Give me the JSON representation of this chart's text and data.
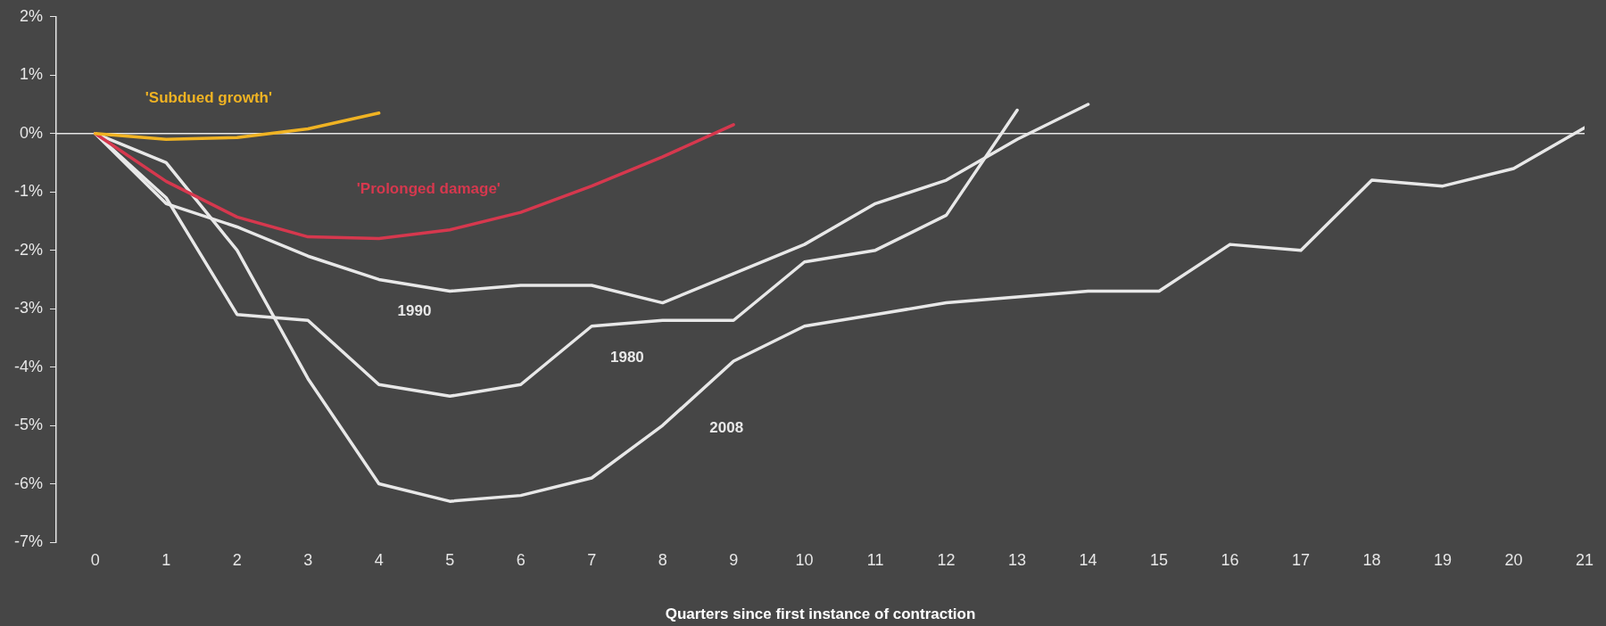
{
  "chart_data": {
    "type": "line",
    "xlabel": "Quarters since first instance of contraction",
    "x": [
      0,
      1,
      2,
      3,
      4,
      5,
      6,
      7,
      8,
      9,
      10,
      11,
      12,
      13,
      14,
      15,
      16,
      17,
      18,
      19,
      20,
      21
    ],
    "xlim": [
      -0.55,
      21
    ],
    "xticks": [
      0,
      1,
      2,
      3,
      4,
      5,
      6,
      7,
      8,
      9,
      10,
      11,
      12,
      13,
      14,
      15,
      16,
      17,
      18,
      19,
      20,
      21
    ],
    "ylim": [
      -7,
      2
    ],
    "yticks": [
      {
        "value": -7,
        "label": "-7%"
      },
      {
        "value": -6,
        "label": "-6%"
      },
      {
        "value": -5,
        "label": "-5%"
      },
      {
        "value": -4,
        "label": "-4%"
      },
      {
        "value": -3,
        "label": "-3%"
      },
      {
        "value": -2,
        "label": "-2%"
      },
      {
        "value": -1,
        "label": "-1%"
      },
      {
        "value": 0,
        "label": "0%"
      },
      {
        "value": 1,
        "label": "1%"
      },
      {
        "value": 2,
        "label": "2%"
      }
    ],
    "grid": false,
    "legend": false,
    "marker": "none",
    "line_style": "solid",
    "ref_lines": [
      {
        "axis": "y",
        "value": 0,
        "color": "#e6e6e6"
      }
    ],
    "series": [
      {
        "name": "'Subdued growth'",
        "color": "#f0b323",
        "x": [
          0,
          1,
          2,
          3,
          4
        ],
        "values": [
          0,
          -0.1,
          -0.07,
          0.08,
          0.35
        ]
      },
      {
        "name": "'Prolonged damage'",
        "color": "#d6384e",
        "x": [
          0,
          1,
          2,
          3,
          4,
          5,
          6,
          7,
          8,
          9
        ],
        "values": [
          0,
          -0.82,
          -1.43,
          -1.77,
          -1.8,
          -1.65,
          -1.35,
          -0.9,
          -0.4,
          0.15
        ]
      },
      {
        "name": "1990",
        "color": "#e8e8e8",
        "x": [
          0,
          1,
          2,
          3,
          4,
          5,
          6,
          7,
          8,
          9,
          10,
          11,
          12,
          13,
          14
        ],
        "values": [
          0,
          -1.2,
          -1.6,
          -2.1,
          -2.5,
          -2.7,
          -2.6,
          -2.6,
          -2.9,
          -2.4,
          -1.9,
          -1.2,
          -0.8,
          -0.1,
          0.5
        ]
      },
      {
        "name": "1980",
        "color": "#e8e8e8",
        "x": [
          0,
          1,
          2,
          3,
          4,
          5,
          6,
          7,
          8,
          9,
          10,
          11,
          12,
          13
        ],
        "values": [
          0,
          -1.1,
          -3.1,
          -3.2,
          -4.3,
          -4.5,
          -4.3,
          -3.3,
          -3.2,
          -3.2,
          -2.2,
          -2.0,
          -1.4,
          0.4
        ]
      },
      {
        "name": "2008",
        "color": "#e8e8e8",
        "values": [
          0,
          -0.5,
          -2.0,
          -4.2,
          -6.0,
          -6.3,
          -6.2,
          -5.9,
          -5.0,
          -3.9,
          -3.3,
          -3.1,
          -2.9,
          -2.8,
          -2.7,
          -2.7,
          -1.9,
          -2.0,
          -0.8,
          -0.9,
          -0.6,
          0.1
        ]
      }
    ]
  }
}
